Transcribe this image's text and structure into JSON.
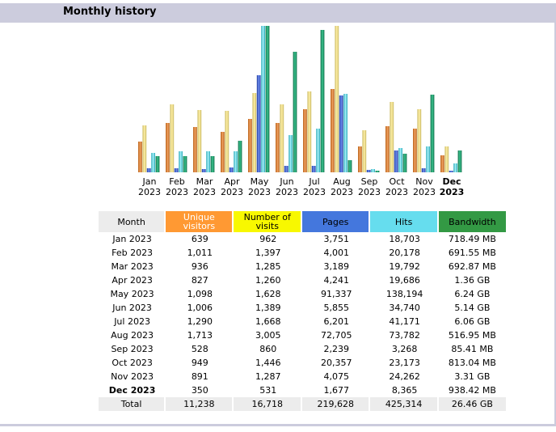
{
  "section": {
    "title": "Monthly history"
  },
  "chart_data": {
    "type": "bar",
    "categories": [
      "Jan 2023",
      "Feb 2023",
      "Mar 2023",
      "Apr 2023",
      "May 2023",
      "Jun 2023",
      "Jul 2023",
      "Aug 2023",
      "Sep 2023",
      "Oct 2023",
      "Nov 2023",
      "Dec 2023"
    ],
    "month_names": [
      "Jan",
      "Feb",
      "Mar",
      "Apr",
      "May",
      "Jun",
      "Jul",
      "Aug",
      "Sep",
      "Oct",
      "Nov",
      "Dec"
    ],
    "years": [
      "2023",
      "2023",
      "2023",
      "2023",
      "2023",
      "2023",
      "2023",
      "2023",
      "2023",
      "2023",
      "2023",
      "2023"
    ],
    "current_month_index": 11,
    "series": [
      {
        "name": "Unique visitors",
        "color": "#dd8833",
        "values": [
          639,
          1011,
          936,
          827,
          1098,
          1006,
          1290,
          1713,
          528,
          949,
          891,
          350
        ]
      },
      {
        "name": "Number of visits",
        "color": "#eedd88",
        "values": [
          962,
          1397,
          1285,
          1260,
          1628,
          1389,
          1668,
          3005,
          860,
          1446,
          1287,
          531
        ]
      },
      {
        "name": "Pages",
        "color": "#3355cc",
        "values": [
          3751,
          4001,
          3189,
          4241,
          91337,
          5855,
          6201,
          72705,
          2239,
          20357,
          4075,
          1677
        ]
      },
      {
        "name": "Hits",
        "color": "#55ccdd",
        "values": [
          18703,
          20178,
          19792,
          19686,
          138194,
          34740,
          41171,
          73782,
          3268,
          23173,
          24262,
          8365
        ]
      },
      {
        "name": "Bandwidth",
        "color": "#229966",
        "values_mb": [
          718.49,
          691.55,
          692.87,
          1392.64,
          6389.76,
          5263.36,
          6205.44,
          516.95,
          85.41,
          813.04,
          3389.44,
          938.42
        ]
      }
    ]
  },
  "table": {
    "headers": {
      "month": "Month",
      "unique": "Unique visitors",
      "visits": "Number of visits",
      "pages": "Pages",
      "hits": "Hits",
      "bandwidth": "Bandwidth"
    },
    "rows": [
      {
        "month": "Jan 2023",
        "unique": "639",
        "visits": "962",
        "pages": "3,751",
        "hits": "18,703",
        "bandwidth": "718.49 MB"
      },
      {
        "month": "Feb 2023",
        "unique": "1,011",
        "visits": "1,397",
        "pages": "4,001",
        "hits": "20,178",
        "bandwidth": "691.55 MB"
      },
      {
        "month": "Mar 2023",
        "unique": "936",
        "visits": "1,285",
        "pages": "3,189",
        "hits": "19,792",
        "bandwidth": "692.87 MB"
      },
      {
        "month": "Apr 2023",
        "unique": "827",
        "visits": "1,260",
        "pages": "4,241",
        "hits": "19,686",
        "bandwidth": "1.36 GB"
      },
      {
        "month": "May 2023",
        "unique": "1,098",
        "visits": "1,628",
        "pages": "91,337",
        "hits": "138,194",
        "bandwidth": "6.24 GB"
      },
      {
        "month": "Jun 2023",
        "unique": "1,006",
        "visits": "1,389",
        "pages": "5,855",
        "hits": "34,740",
        "bandwidth": "5.14 GB"
      },
      {
        "month": "Jul 2023",
        "unique": "1,290",
        "visits": "1,668",
        "pages": "6,201",
        "hits": "41,171",
        "bandwidth": "6.06 GB"
      },
      {
        "month": "Aug 2023",
        "unique": "1,713",
        "visits": "3,005",
        "pages": "72,705",
        "hits": "73,782",
        "bandwidth": "516.95 MB"
      },
      {
        "month": "Sep 2023",
        "unique": "528",
        "visits": "860",
        "pages": "2,239",
        "hits": "3,268",
        "bandwidth": "85.41 MB"
      },
      {
        "month": "Oct 2023",
        "unique": "949",
        "visits": "1,446",
        "pages": "20,357",
        "hits": "23,173",
        "bandwidth": "813.04 MB"
      },
      {
        "month": "Nov 2023",
        "unique": "891",
        "visits": "1,287",
        "pages": "4,075",
        "hits": "24,262",
        "bandwidth": "3.31 GB"
      },
      {
        "month": "Dec 2023",
        "unique": "350",
        "visits": "531",
        "pages": "1,677",
        "hits": "8,365",
        "bandwidth": "938.42 MB"
      }
    ],
    "total": {
      "month": "Total",
      "unique": "11,238",
      "visits": "16,718",
      "pages": "219,628",
      "hits": "425,314",
      "bandwidth": "26.46 GB"
    }
  }
}
